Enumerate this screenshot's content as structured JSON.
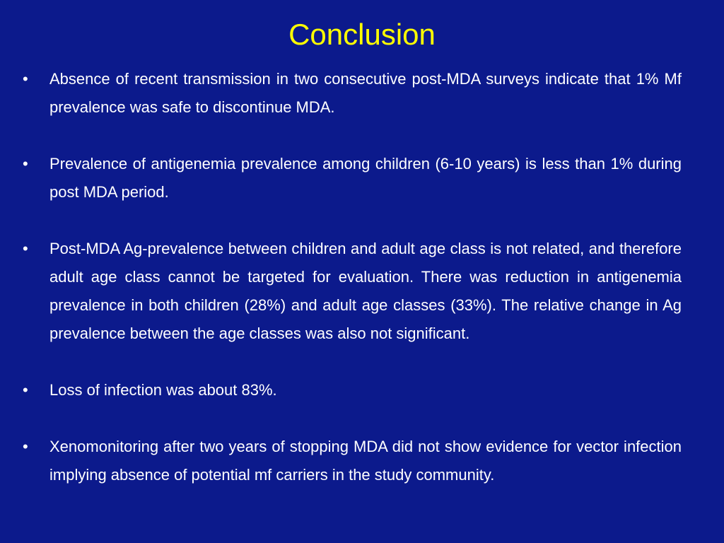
{
  "slide": {
    "title": "Conclusion",
    "bullet_marker": "•",
    "bullets": [
      "Absence of recent transmission in two consecutive post-MDA surveys indicate that 1% Mf prevalence was safe to discontinue MDA.",
      "Prevalence of antigenemia prevalence among children (6-10 years) is less than 1% during post MDA period.",
      "Post-MDA Ag-prevalence between children and adult age class is not related, and therefore adult age class cannot be targeted for evaluation. There was reduction in antigenemia prevalence in both children (28%) and adult age classes (33%). The relative change in Ag prevalence between the age classes was also not significant.",
      "Loss of infection was about 83%.",
      "Xenomonitoring after two years of stopping MDA did not show evidence for vector infection implying absence of potential mf carriers in the study community."
    ]
  },
  "colors": {
    "background": "#0c1a8c",
    "title": "#ffff00",
    "text": "#ffffff"
  }
}
